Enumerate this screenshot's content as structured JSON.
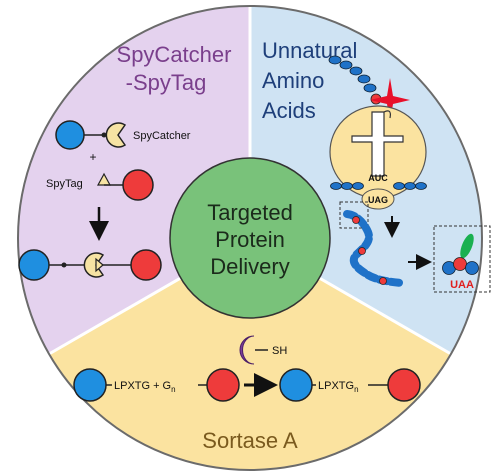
{
  "center": {
    "line1": "Targeted",
    "line2": "Protein",
    "line3": "Delivery"
  },
  "spycatcher": {
    "title_line1": "SpyCatcher",
    "title_line2": "-SpyTag",
    "label_spycatcher": "SpyCatcher",
    "label_plus": "+",
    "label_spytag": "SpyTag"
  },
  "uaa": {
    "title_line1": "Unnatural",
    "title_line2": "Amino",
    "title_line3": "Acids",
    "anticodon": "AUC",
    "codon": "UAG",
    "label_uaa": "UAA"
  },
  "sortase": {
    "title": "Sortase A",
    "label_sh": "SH",
    "label_lpxtg": "LPXTG",
    "label_plus_g": "+ G",
    "label_n": "n",
    "label_lpxtgn": "LPXTG",
    "label_n2": "n"
  },
  "colors": {
    "purple_sector": "#e4d2ee",
    "blue_sector": "#cfe3f3",
    "yellow_sector": "#fbe3a0",
    "center": "#79c27a",
    "blue_ball": "#1f8fe0",
    "red_ball": "#ee3b3b",
    "catcher": "#f6e3a3",
    "title_purple": "#7a3f8c",
    "title_navy": "#1e3f7a",
    "title_brown": "#7a5a1e"
  }
}
